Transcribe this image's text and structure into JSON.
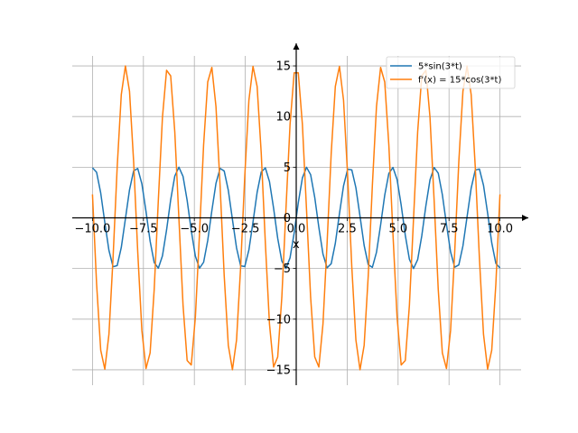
{
  "chart_data": {
    "type": "line",
    "title": "",
    "xlabel": "x",
    "ylabel": "",
    "xlim": [
      -10.5,
      10.5
    ],
    "ylim": [
      -16.5,
      17
    ],
    "grid": true,
    "legend_position": "top-right",
    "x_ticks": [
      -10.0,
      -7.5,
      -5.0,
      -2.5,
      0.0,
      2.5,
      5.0,
      7.5,
      10.0
    ],
    "x_tick_labels": [
      "−10.0",
      "−7.5",
      "−5.0",
      "−2.5",
      "0.0",
      "2.5",
      "5.0",
      "7.5",
      "10.0"
    ],
    "y_ticks": [
      -15,
      -10,
      -5,
      0,
      5,
      10,
      15
    ],
    "y_tick_labels": [
      "−15",
      "−10",
      "−5",
      "0",
      "5",
      "10",
      "15"
    ],
    "x_range": [
      -10,
      10
    ],
    "sample_count": 100,
    "series": [
      {
        "name": "5*sin(3*t)",
        "color": "#1f77b4",
        "amplitude": 5,
        "frequency": 3,
        "func": "sin"
      },
      {
        "name": "f'(x) = 15*cos(3*t)",
        "color": "#ff7f0e",
        "amplitude": 15,
        "frequency": 3,
        "func": "cos"
      }
    ]
  }
}
